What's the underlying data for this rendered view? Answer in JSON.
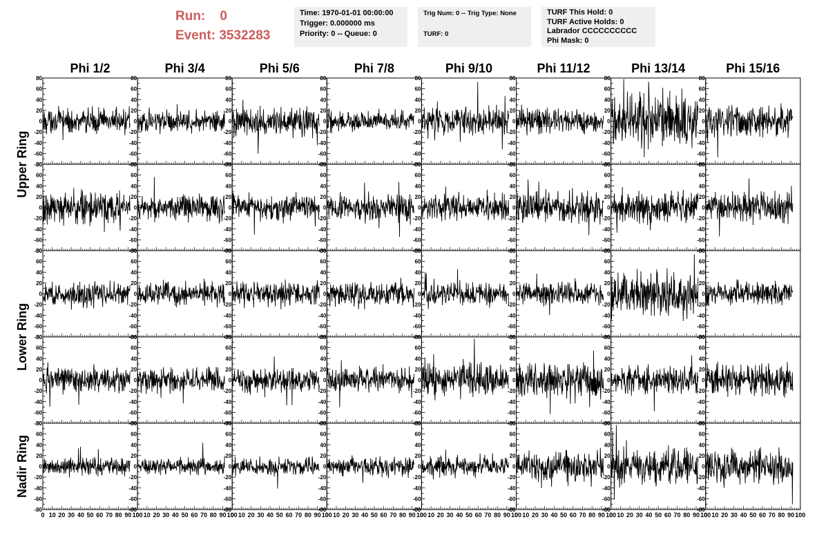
{
  "header": {
    "run_label": "Run:",
    "run_value": "0",
    "event_label": "Event:",
    "event_value": "3532283",
    "time_box": [
      "Time: 1970-01-01 00:00:00",
      "Trigger: 0.000000 ms",
      "Priority: 0 -- Queue: 0"
    ],
    "trig_box": [
      "Trig Num: 0 -- Trig Type: None",
      "",
      "TURF: 0"
    ],
    "turf_box": [
      "TURF This Hold: 0",
      "TURF Active Holds: 0",
      "Labrador CCCCCCCCCC",
      "Phi Mask: 0"
    ]
  },
  "colors": {
    "run_event_text": "#cd5c5c",
    "info_box_bg": "#efefef",
    "trace": "#000000"
  },
  "chart_data": {
    "type": "line",
    "title": "",
    "columns": [
      "Phi 1/2",
      "Phi 3/4",
      "Phi 5/6",
      "Phi 7/8",
      "Phi 9/10",
      "Phi 11/12",
      "Phi 13/14",
      "Phi 15/16"
    ],
    "ring_labels": [
      "Upper Ring",
      "Lower Ring",
      "Nadir Ring"
    ],
    "xlim": [
      0,
      100
    ],
    "ylim": [
      -80,
      80
    ],
    "x_tick_labels": [
      "0",
      "10",
      "20",
      "30",
      "40",
      "50",
      "60",
      "70",
      "80",
      "90",
      "100"
    ],
    "y_tick_labels": [
      "80",
      "60",
      "40",
      "20",
      "0",
      "-20",
      "-40",
      "-60",
      "-80"
    ],
    "trace_x_range": [
      0,
      92
    ],
    "trace_samples": 260,
    "panel_amplitudes": [
      [
        12,
        10,
        14,
        10,
        14,
        12,
        28,
        16
      ],
      [
        15,
        13,
        13,
        13,
        13,
        16,
        15,
        14
      ],
      [
        12,
        11,
        11,
        11,
        11,
        11,
        22,
        12
      ],
      [
        12,
        12,
        12,
        12,
        15,
        16,
        13,
        15
      ],
      [
        9,
        8,
        8,
        9,
        9,
        15,
        18,
        17
      ]
    ]
  }
}
